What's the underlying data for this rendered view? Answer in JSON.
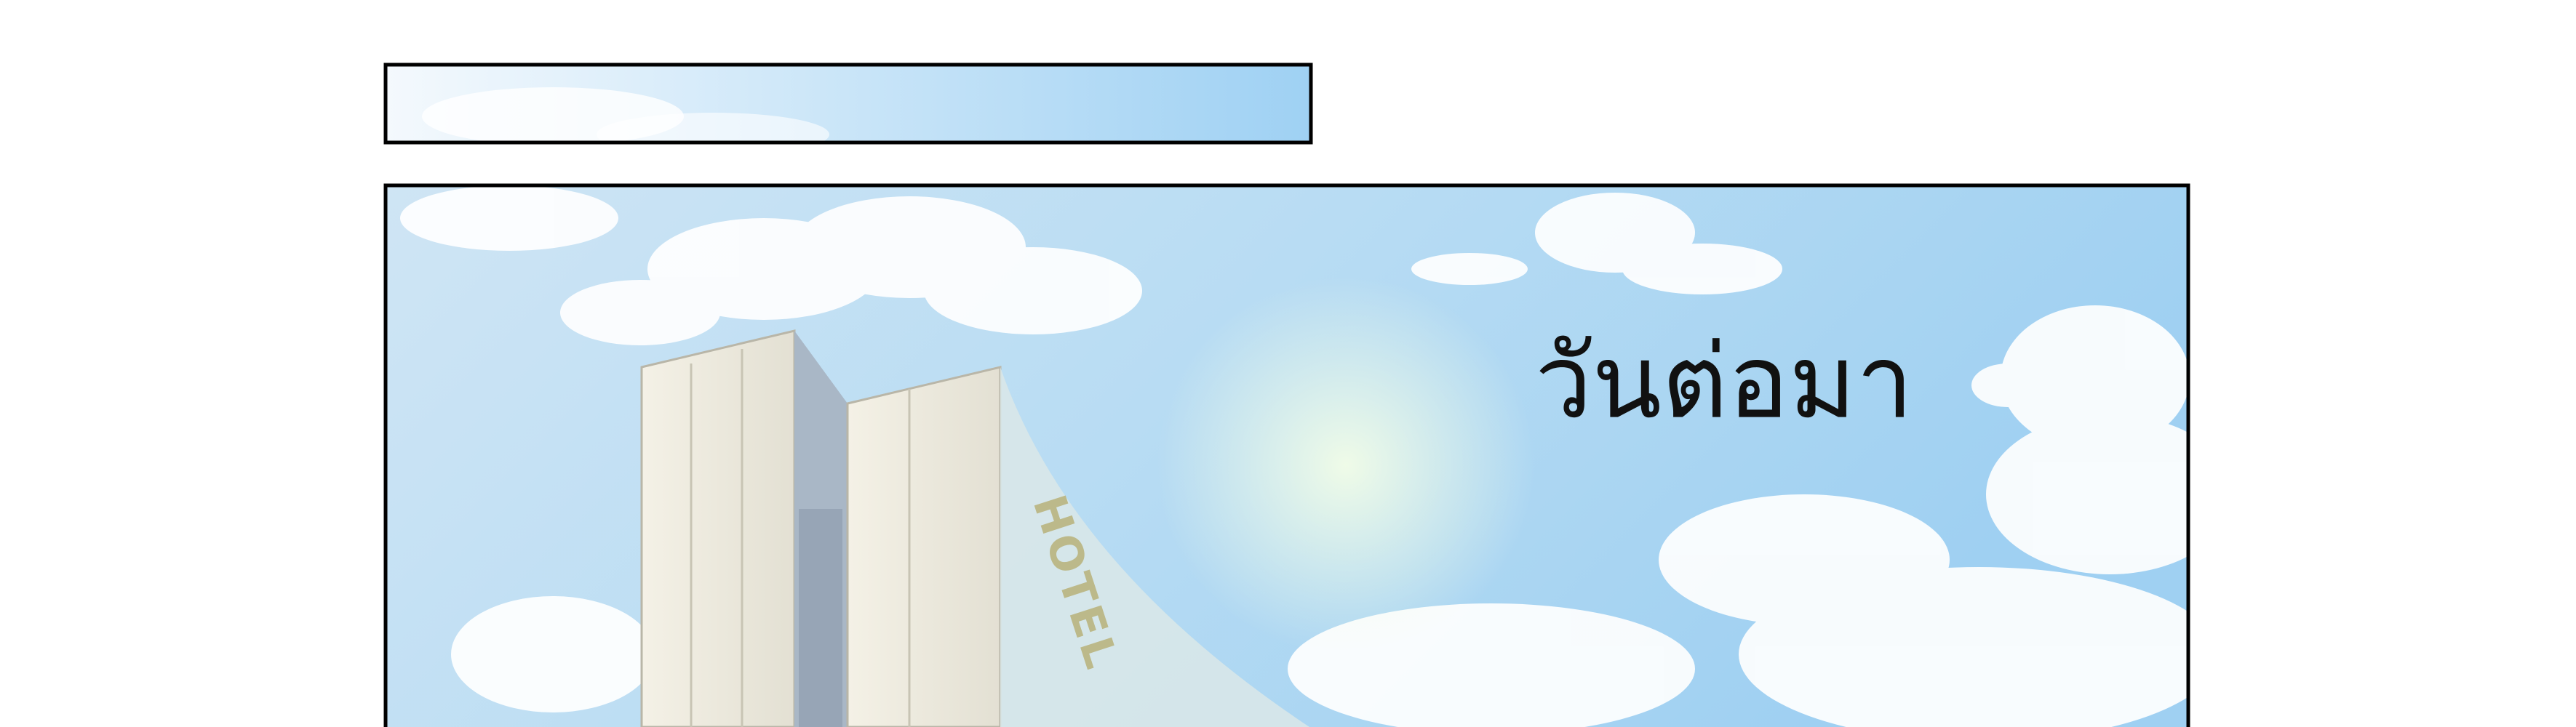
{
  "caption": "วันต่อมา",
  "sign": "HOTEL"
}
